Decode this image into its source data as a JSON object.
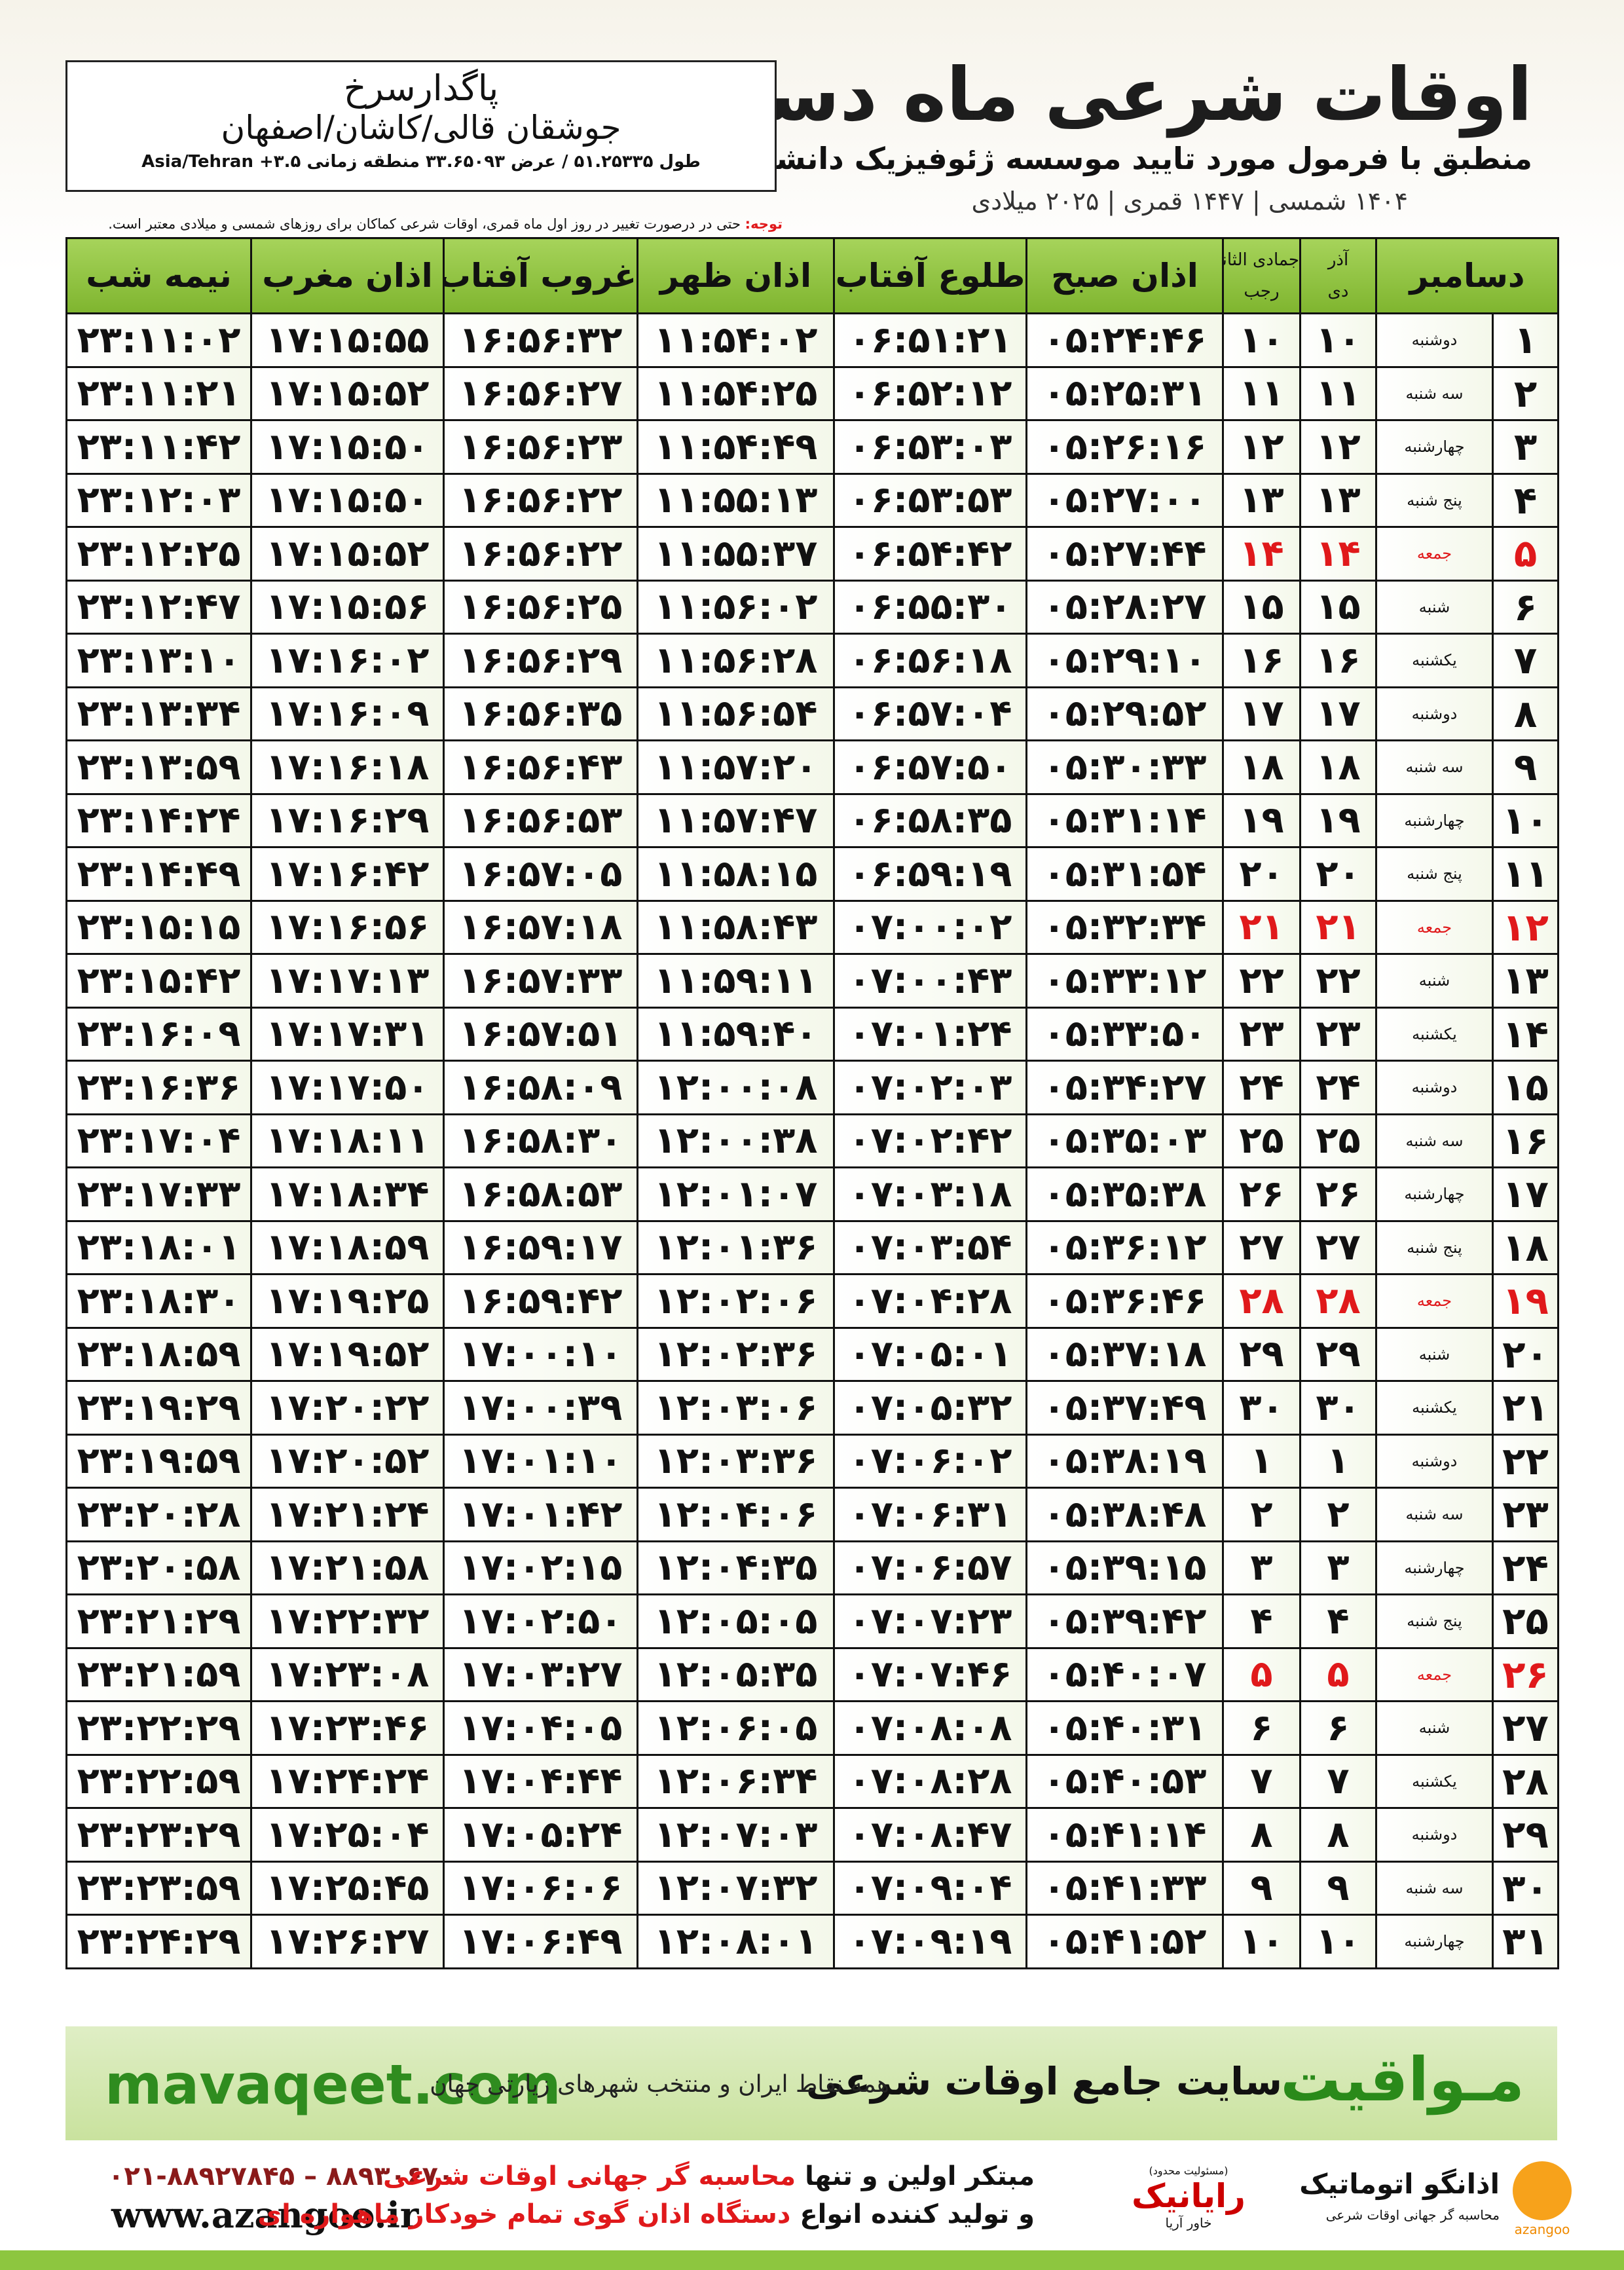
{
  "header": {
    "title": "اوقات شرعی ماه دسامبر",
    "subtitle": "منطبق با فرمول مورد تایید موسسه ژئوفیزیک دانشگاه تهران",
    "dates": "۱۴۰۴ شمسی | ۱۴۴۷ قمری | ۲۰۲۵ میلادی"
  },
  "location": {
    "name": "پاگدارسرخ",
    "region": "جوشقان قالی/کاشان/اصفهان",
    "coords": "طول ۵۱.۲۵۳۳۵ / عرض ۳۳.۶۵۰۹۳ منطقه زمانی ۳.۵+ Asia/Tehran"
  },
  "note": {
    "label": "توجه:",
    "text": "حتی در درصورت تغییر در روز اول ماه قمری، اوقات شرعی کماکان برای روزهای شمسی و میلادی معتبر است."
  },
  "table": {
    "columns": {
      "day": "دسامبر",
      "shamsi_top": "آذر",
      "shamsi": "دی",
      "qamari_top": "جمادی الثانی",
      "qamari": "رجب",
      "times": [
        "اذان صبح",
        "طلوع آفتاب",
        "اذان ظهر",
        "غروب آفتاب",
        "اذان مغرب",
        "نیمه شب"
      ]
    },
    "rows": [
      {
        "cells": [
          "۱",
          "دوشنبه",
          "۱۰",
          "۱۰",
          "۰۵:۲۴:۴۶",
          "۰۶:۵۱:۲۱",
          "۱۱:۵۴:۰۲",
          "۱۶:۵۶:۳۲",
          "۱۷:۱۵:۵۵",
          "۲۳:۱۱:۰۲"
        ]
      },
      {
        "cells": [
          "۲",
          "سه شنبه",
          "۱۱",
          "۱۱",
          "۰۵:۲۵:۳۱",
          "۰۶:۵۲:۱۲",
          "۱۱:۵۴:۲۵",
          "۱۶:۵۶:۲۷",
          "۱۷:۱۵:۵۲",
          "۲۳:۱۱:۲۱"
        ]
      },
      {
        "cells": [
          "۳",
          "چهارشنبه",
          "۱۲",
          "۱۲",
          "۰۵:۲۶:۱۶",
          "۰۶:۵۳:۰۳",
          "۱۱:۵۴:۴۹",
          "۱۶:۵۶:۲۳",
          "۱۷:۱۵:۵۰",
          "۲۳:۱۱:۴۲"
        ]
      },
      {
        "cells": [
          "۴",
          "پنج شنبه",
          "۱۳",
          "۱۳",
          "۰۵:۲۷:۰۰",
          "۰۶:۵۳:۵۳",
          "۱۱:۵۵:۱۳",
          "۱۶:۵۶:۲۲",
          "۱۷:۱۵:۵۰",
          "۲۳:۱۲:۰۳"
        ]
      },
      {
        "cells": [
          "۵",
          "جمعه",
          "۱۴",
          "۱۴",
          "۰۵:۲۷:۴۴",
          "۰۶:۵۴:۴۲",
          "۱۱:۵۵:۳۷",
          "۱۶:۵۶:۲۲",
          "۱۷:۱۵:۵۲",
          "۲۳:۱۲:۲۵"
        ],
        "color": "#e0191b"
      },
      {
        "cells": [
          "۶",
          "شنبه",
          "۱۵",
          "۱۵",
          "۰۵:۲۸:۲۷",
          "۰۶:۵۵:۳۰",
          "۱۱:۵۶:۰۲",
          "۱۶:۵۶:۲۵",
          "۱۷:۱۵:۵۶",
          "۲۳:۱۲:۴۷"
        ]
      },
      {
        "cells": [
          "۷",
          "یکشنبه",
          "۱۶",
          "۱۶",
          "۰۵:۲۹:۱۰",
          "۰۶:۵۶:۱۸",
          "۱۱:۵۶:۲۸",
          "۱۶:۵۶:۲۹",
          "۱۷:۱۶:۰۲",
          "۲۳:۱۳:۱۰"
        ]
      },
      {
        "cells": [
          "۸",
          "دوشنبه",
          "۱۷",
          "۱۷",
          "۰۵:۲۹:۵۲",
          "۰۶:۵۷:۰۴",
          "۱۱:۵۶:۵۴",
          "۱۶:۵۶:۳۵",
          "۱۷:۱۶:۰۹",
          "۲۳:۱۳:۳۴"
        ]
      },
      {
        "cells": [
          "۹",
          "سه شنبه",
          "۱۸",
          "۱۸",
          "۰۵:۳۰:۳۳",
          "۰۶:۵۷:۵۰",
          "۱۱:۵۷:۲۰",
          "۱۶:۵۶:۴۳",
          "۱۷:۱۶:۱۸",
          "۲۳:۱۳:۵۹"
        ]
      },
      {
        "cells": [
          "۱۰",
          "چهارشنبه",
          "۱۹",
          "۱۹",
          "۰۵:۳۱:۱۴",
          "۰۶:۵۸:۳۵",
          "۱۱:۵۷:۴۷",
          "۱۶:۵۶:۵۳",
          "۱۷:۱۶:۲۹",
          "۲۳:۱۴:۲۴"
        ]
      },
      {
        "cells": [
          "۱۱",
          "پنج شنبه",
          "۲۰",
          "۲۰",
          "۰۵:۳۱:۵۴",
          "۰۶:۵۹:۱۹",
          "۱۱:۵۸:۱۵",
          "۱۶:۵۷:۰۵",
          "۱۷:۱۶:۴۲",
          "۲۳:۱۴:۴۹"
        ]
      },
      {
        "cells": [
          "۱۲",
          "جمعه",
          "۲۱",
          "۲۱",
          "۰۵:۳۲:۳۴",
          "۰۷:۰۰:۰۲",
          "۱۱:۵۸:۴۳",
          "۱۶:۵۷:۱۸",
          "۱۷:۱۶:۵۶",
          "۲۳:۱۵:۱۵"
        ],
        "color": "#e0191b"
      },
      {
        "cells": [
          "۱۳",
          "شنبه",
          "۲۲",
          "۲۲",
          "۰۵:۳۳:۱۲",
          "۰۷:۰۰:۴۳",
          "۱۱:۵۹:۱۱",
          "۱۶:۵۷:۳۳",
          "۱۷:۱۷:۱۳",
          "۲۳:۱۵:۴۲"
        ]
      },
      {
        "cells": [
          "۱۴",
          "یکشنبه",
          "۲۳",
          "۲۳",
          "۰۵:۳۳:۵۰",
          "۰۷:۰۱:۲۴",
          "۱۱:۵۹:۴۰",
          "۱۶:۵۷:۵۱",
          "۱۷:۱۷:۳۱",
          "۲۳:۱۶:۰۹"
        ]
      },
      {
        "cells": [
          "۱۵",
          "دوشنبه",
          "۲۴",
          "۲۴",
          "۰۵:۳۴:۲۷",
          "۰۷:۰۲:۰۳",
          "۱۲:۰۰:۰۸",
          "۱۶:۵۸:۰۹",
          "۱۷:۱۷:۵۰",
          "۲۳:۱۶:۳۶"
        ]
      },
      {
        "cells": [
          "۱۶",
          "سه شنبه",
          "۲۵",
          "۲۵",
          "۰۵:۳۵:۰۳",
          "۰۷:۰۲:۴۲",
          "۱۲:۰۰:۳۸",
          "۱۶:۵۸:۳۰",
          "۱۷:۱۸:۱۱",
          "۲۳:۱۷:۰۴"
        ]
      },
      {
        "cells": [
          "۱۷",
          "چهارشنبه",
          "۲۶",
          "۲۶",
          "۰۵:۳۵:۳۸",
          "۰۷:۰۳:۱۸",
          "۱۲:۰۱:۰۷",
          "۱۶:۵۸:۵۳",
          "۱۷:۱۸:۳۴",
          "۲۳:۱۷:۳۳"
        ]
      },
      {
        "cells": [
          "۱۸",
          "پنج شنبه",
          "۲۷",
          "۲۷",
          "۰۵:۳۶:۱۲",
          "۰۷:۰۳:۵۴",
          "۱۲:۰۱:۳۶",
          "۱۶:۵۹:۱۷",
          "۱۷:۱۸:۵۹",
          "۲۳:۱۸:۰۱"
        ]
      },
      {
        "cells": [
          "۱۹",
          "جمعه",
          "۲۸",
          "۲۸",
          "۰۵:۳۶:۴۶",
          "۰۷:۰۴:۲۸",
          "۱۲:۰۲:۰۶",
          "۱۶:۵۹:۴۲",
          "۱۷:۱۹:۲۵",
          "۲۳:۱۸:۳۰"
        ],
        "color": "#e0191b"
      },
      {
        "cells": [
          "۲۰",
          "شنبه",
          "۲۹",
          "۲۹",
          "۰۵:۳۷:۱۸",
          "۰۷:۰۵:۰۱",
          "۱۲:۰۲:۳۶",
          "۱۷:۰۰:۱۰",
          "۱۷:۱۹:۵۲",
          "۲۳:۱۸:۵۹"
        ]
      },
      {
        "cells": [
          "۲۱",
          "یکشنبه",
          "۳۰",
          "۳۰",
          "۰۵:۳۷:۴۹",
          "۰۷:۰۵:۳۲",
          "۱۲:۰۳:۰۶",
          "۱۷:۰۰:۳۹",
          "۱۷:۲۰:۲۲",
          "۲۳:۱۹:۲۹"
        ]
      },
      {
        "cells": [
          "۲۲",
          "دوشنبه",
          "۱",
          "۱",
          "۰۵:۳۸:۱۹",
          "۰۷:۰۶:۰۲",
          "۱۲:۰۳:۳۶",
          "۱۷:۰۱:۱۰",
          "۱۷:۲۰:۵۲",
          "۲۳:۱۹:۵۹"
        ]
      },
      {
        "cells": [
          "۲۳",
          "سه شنبه",
          "۲",
          "۲",
          "۰۵:۳۸:۴۸",
          "۰۷:۰۶:۳۱",
          "۱۲:۰۴:۰۶",
          "۱۷:۰۱:۴۲",
          "۱۷:۲۱:۲۴",
          "۲۳:۲۰:۲۸"
        ]
      },
      {
        "cells": [
          "۲۴",
          "چهارشنبه",
          "۳",
          "۳",
          "۰۵:۳۹:۱۵",
          "۰۷:۰۶:۵۷",
          "۱۲:۰۴:۳۵",
          "۱۷:۰۲:۱۵",
          "۱۷:۲۱:۵۸",
          "۲۳:۲۰:۵۸"
        ]
      },
      {
        "cells": [
          "۲۵",
          "پنج شنبه",
          "۴",
          "۴",
          "۰۵:۳۹:۴۲",
          "۰۷:۰۷:۲۳",
          "۱۲:۰۵:۰۵",
          "۱۷:۰۲:۵۰",
          "۱۷:۲۲:۳۲",
          "۲۳:۲۱:۲۹"
        ]
      },
      {
        "cells": [
          "۲۶",
          "جمعه",
          "۵",
          "۵",
          "۰۵:۴۰:۰۷",
          "۰۷:۰۷:۴۶",
          "۱۲:۰۵:۳۵",
          "۱۷:۰۳:۲۷",
          "۱۷:۲۳:۰۸",
          "۲۳:۲۱:۵۹"
        ],
        "color": "#e0191b"
      },
      {
        "cells": [
          "۲۷",
          "شنبه",
          "۶",
          "۶",
          "۰۵:۴۰:۳۱",
          "۰۷:۰۸:۰۸",
          "۱۲:۰۶:۰۵",
          "۱۷:۰۴:۰۵",
          "۱۷:۲۳:۴۶",
          "۲۳:۲۲:۲۹"
        ]
      },
      {
        "cells": [
          "۲۸",
          "یکشنبه",
          "۷",
          "۷",
          "۰۵:۴۰:۵۳",
          "۰۷:۰۸:۲۸",
          "۱۲:۰۶:۳۴",
          "۱۷:۰۴:۴۴",
          "۱۷:۲۴:۲۴",
          "۲۳:۲۲:۵۹"
        ]
      },
      {
        "cells": [
          "۲۹",
          "دوشنبه",
          "۸",
          "۸",
          "۰۵:۴۱:۱۴",
          "۰۷:۰۸:۴۷",
          "۱۲:۰۷:۰۳",
          "۱۷:۰۵:۲۴",
          "۱۷:۲۵:۰۴",
          "۲۳:۲۳:۲۹"
        ]
      },
      {
        "cells": [
          "۳۰",
          "سه شنبه",
          "۹",
          "۹",
          "۰۵:۴۱:۳۳",
          "۰۷:۰۹:۰۴",
          "۱۲:۰۷:۳۲",
          "۱۷:۰۶:۰۶",
          "۱۷:۲۵:۴۵",
          "۲۳:۲۳:۵۹"
        ]
      },
      {
        "cells": [
          "۳۱",
          "چهارشنبه",
          "۱۰",
          "۱۰",
          "۰۵:۴۱:۵۲",
          "۰۷:۰۹:۱۹",
          "۱۲:۰۸:۰۱",
          "۱۷:۰۶:۴۹",
          "۱۷:۲۶:۲۷",
          "۲۳:۲۴:۲۹"
        ]
      }
    ]
  },
  "banner": {
    "url": "mavaqeet.com",
    "brand": "مـواقیت",
    "tagline": "سایت جامع اوقات شرعی",
    "coverage": "همه نقاط ایران و منتخب شهرهای زیارتی جهان"
  },
  "footer": {
    "phones": "۰۲۱-۸۸۹۲۷۸۴۵ – ۸۸۹۳۰۶۷۰",
    "website": "www.azangoo.ir",
    "line1_a": "مبتکر اولین و تنها",
    "line1_b": "محاسبه گر جهانی اوقات شرعی",
    "line2_a": "و تولید کننده انواع",
    "line2_b": "دستگاه اذان گوی تمام خودکار ماهواره ای",
    "rayanic": "رایانیک",
    "rayanic_sub": "خاور آریا",
    "rayanic_note": "(مسئولیت محدود)",
    "azangoo": "اذانگو اتوماتیک",
    "azangoo_sub": "محاسبه گر جهانی اوقات شرعی",
    "azangoo_en": "azangoo"
  }
}
